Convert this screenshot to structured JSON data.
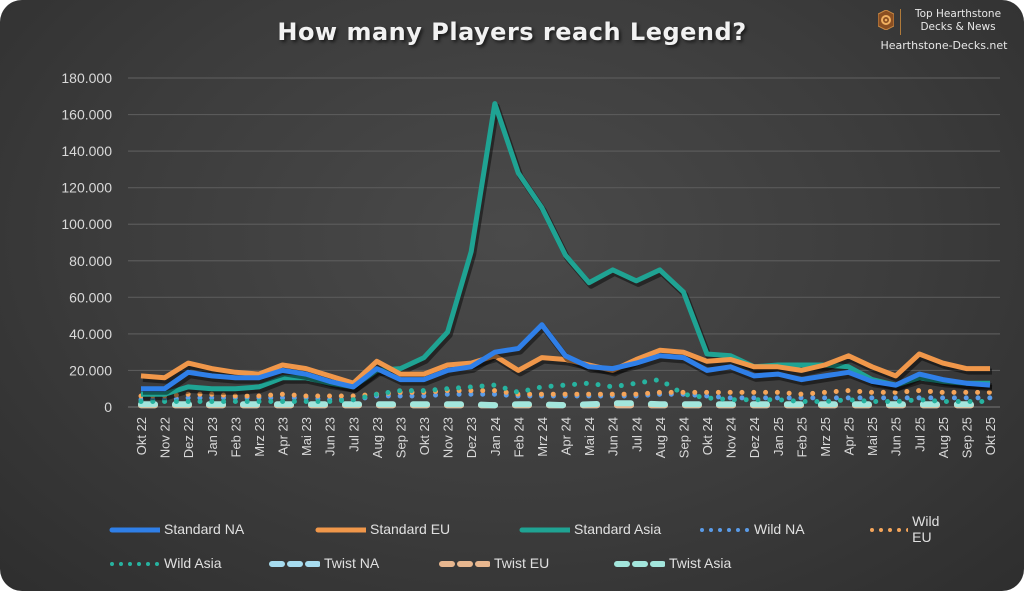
{
  "header": {
    "title": "How many Players reach Legend?",
    "brand_line1": "Top Hearthstone",
    "brand_line2": "Decks & News",
    "brand_site": "Hearthstone-Decks.net",
    "brand_icon": "hearthstone-swirl-icon"
  },
  "colors": {
    "background": "#3c3c3c",
    "standard_na": "#2f7fe8",
    "standard_eu": "#f0974a",
    "standard_asia": "#1fa393",
    "wild_na": "#5a9be8",
    "wild_eu": "#f5a55a",
    "wild_asia": "#27b3a0",
    "twist_na": "#a7dcef",
    "twist_eu": "#e8b78f",
    "twist_asia": "#a3e6dc",
    "grid": "#5a5a5a",
    "text": "#d9d9d9"
  },
  "chart_data": {
    "type": "line",
    "title": "How many Players reach Legend?",
    "xlabel": "",
    "ylabel": "",
    "ylim": [
      0,
      180000
    ],
    "yticks": [
      "0",
      "20.000",
      "40.000",
      "60.000",
      "80.000",
      "100.000",
      "120.000",
      "140.000",
      "160.000",
      "180.000"
    ],
    "grid": true,
    "legend_position": "bottom",
    "categories": [
      "Okt 22",
      "Nov 22",
      "Dez 22",
      "Jan 23",
      "Feb 23",
      "Mrz 23",
      "Apr 23",
      "Mai 23",
      "Jun 23",
      "Jul 23",
      "Aug 23",
      "Sep 23",
      "Okt 23",
      "Nov 23",
      "Dez 23",
      "Jan 24",
      "Feb 24",
      "Mrz 24",
      "Apr 24",
      "Mai 24",
      "Jun 24",
      "Jul 24",
      "Aug 24",
      "Sep 24",
      "Okt 24",
      "Nov 24",
      "Dez 24",
      "Jan 25",
      "Feb 25",
      "Mrz 25",
      "Apr 25",
      "Mai 25",
      "Jun 25",
      "Jul 25",
      "Aug 25",
      "Sep 25",
      "Okt 25"
    ],
    "series": [
      {
        "name": "Standard NA",
        "style": "solid",
        "values": [
          10000,
          10000,
          19000,
          17000,
          16000,
          16000,
          20000,
          18000,
          14000,
          11000,
          21000,
          15000,
          15000,
          20000,
          22000,
          30000,
          32000,
          45000,
          28000,
          22000,
          21000,
          24000,
          28000,
          27000,
          20000,
          22000,
          17000,
          18000,
          15000,
          17000,
          19000,
          14000,
          12000,
          18000,
          15000,
          13000,
          12000
        ]
      },
      {
        "name": "Standard EU",
        "style": "solid",
        "values": [
          17000,
          16000,
          24000,
          21000,
          19000,
          18000,
          23000,
          21000,
          17000,
          13000,
          25000,
          18000,
          18000,
          23000,
          24000,
          28000,
          20000,
          27000,
          26000,
          23000,
          20000,
          26000,
          31000,
          30000,
          25000,
          26000,
          22000,
          22000,
          20000,
          23000,
          28000,
          22000,
          17000,
          29000,
          24000,
          21000,
          21000
        ]
      },
      {
        "name": "Standard Asia",
        "style": "solid",
        "values": [
          7000,
          7000,
          11000,
          10000,
          10000,
          11000,
          16000,
          16000,
          13000,
          11000,
          20000,
          21000,
          27000,
          41000,
          85000,
          166000,
          128000,
          109000,
          83000,
          68000,
          75000,
          69000,
          75000,
          63000,
          29000,
          28000,
          22000,
          23000,
          23000,
          23000,
          22000,
          15000,
          12000,
          16000,
          14000,
          13000,
          13000
        ]
      },
      {
        "name": "Wild NA",
        "style": "dotted",
        "values": [
          4000,
          4000,
          5000,
          5000,
          5000,
          5000,
          5000,
          5000,
          4000,
          4000,
          6000,
          6000,
          6000,
          7000,
          7000,
          7000,
          6000,
          6000,
          6000,
          6000,
          6000,
          6000,
          7000,
          7000,
          6000,
          5000,
          5000,
          5000,
          5000,
          5000,
          5000,
          5000,
          5000,
          5000,
          5000,
          5000,
          5000
        ]
      },
      {
        "name": "Wild EU",
        "style": "dotted",
        "values": [
          6000,
          6000,
          7000,
          7000,
          6000,
          6000,
          7000,
          6000,
          6000,
          6000,
          7000,
          8000,
          8000,
          9000,
          9000,
          9000,
          7000,
          7000,
          7000,
          7000,
          7000,
          7000,
          8000,
          8000,
          8000,
          8000,
          8000,
          8000,
          7000,
          8000,
          9000,
          8000,
          8000,
          9000,
          8000,
          8000,
          8000
        ]
      },
      {
        "name": "Wild Asia",
        "style": "dotted",
        "values": [
          3000,
          3000,
          3000,
          3000,
          3000,
          3000,
          3000,
          3000,
          3000,
          4000,
          7000,
          9000,
          9000,
          10000,
          11000,
          12000,
          8000,
          11000,
          12000,
          13000,
          11000,
          13000,
          15000,
          7000,
          5000,
          4000,
          4000,
          4000,
          3000,
          3000,
          4000,
          3000,
          3000,
          4000,
          3000,
          3000,
          3000
        ]
      },
      {
        "name": "Twist NA",
        "style": "dashed",
        "values": [
          1000,
          1000,
          1000,
          1000,
          1000,
          1000,
          1000,
          1000,
          1000,
          1000,
          1000,
          1000,
          1000,
          1000,
          1000,
          1000,
          1000,
          1000,
          1000,
          1000,
          1000,
          1000,
          1000,
          1000,
          1000,
          1000,
          1000,
          1000,
          1000,
          1000,
          1000,
          1000,
          1000,
          1000,
          1000,
          1000,
          1000
        ]
      },
      {
        "name": "Twist EU",
        "style": "dashed",
        "values": [
          1000,
          1000,
          1000,
          1000,
          1000,
          1000,
          1000,
          1000,
          1000,
          1000,
          1000,
          1000,
          1000,
          1000,
          1000,
          1000,
          1000,
          1000,
          1000,
          1000,
          1000,
          1000,
          1000,
          1000,
          1000,
          1000,
          1000,
          1000,
          1000,
          1000,
          1000,
          1000,
          1000,
          1000,
          1000,
          1000,
          1000
        ]
      },
      {
        "name": "Twist Asia",
        "style": "dashed",
        "values": [
          1500,
          1500,
          1500,
          1500,
          1500,
          1500,
          1500,
          1500,
          1500,
          1500,
          1500,
          1500,
          1500,
          1500,
          1500,
          1000,
          1500,
          1500,
          1000,
          1500,
          2000,
          2000,
          1500,
          1500,
          1500,
          1500,
          1500,
          1500,
          1500,
          1500,
          1500,
          1500,
          1500,
          1500,
          1500,
          1500,
          1500
        ]
      }
    ]
  },
  "legend": {
    "items": [
      {
        "label": "Standard NA"
      },
      {
        "label": "Standard EU"
      },
      {
        "label": "Standard Asia"
      },
      {
        "label": "Wild NA"
      },
      {
        "label": "Wild EU"
      },
      {
        "label": "Wild Asia"
      },
      {
        "label": "Twist NA"
      },
      {
        "label": "Twist EU"
      },
      {
        "label": "Twist Asia"
      }
    ]
  }
}
